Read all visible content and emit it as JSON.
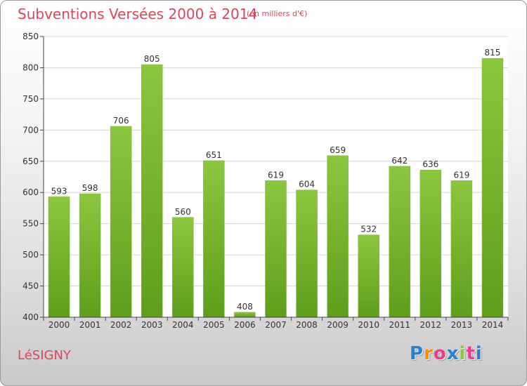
{
  "title": "Subventions Versées 2000 à 2014",
  "subtitle": "(en milliers d'€)",
  "place": "LéSIGNY",
  "brand": {
    "letters": [
      "P",
      "r",
      "o",
      "x",
      "i",
      "t",
      "i"
    ],
    "colors": [
      "#2a7fd0",
      "#ff8c00",
      "#e93e8a",
      "#2a7fd0",
      "#8cc63f",
      "#e93e8a",
      "#2a7fd0"
    ]
  },
  "chart_data": {
    "type": "bar",
    "title": "Subventions Versées 2000 à 2014",
    "subtitle": "(en milliers d'€)",
    "xlabel": "",
    "ylabel": "",
    "categories": [
      "2000",
      "2001",
      "2002",
      "2003",
      "2004",
      "2005",
      "2006",
      "2007",
      "2008",
      "2009",
      "2010",
      "2011",
      "2012",
      "2013",
      "2014"
    ],
    "values": [
      593,
      598,
      706,
      805,
      560,
      651,
      408,
      619,
      604,
      659,
      532,
      642,
      636,
      619,
      815
    ],
    "ylim": [
      400,
      850
    ],
    "yticks": [
      400,
      450,
      500,
      550,
      600,
      650,
      700,
      750,
      800,
      850
    ],
    "grid": true,
    "bar_color": "#8cc63f",
    "bar_color_dark": "#5e9e1c"
  }
}
